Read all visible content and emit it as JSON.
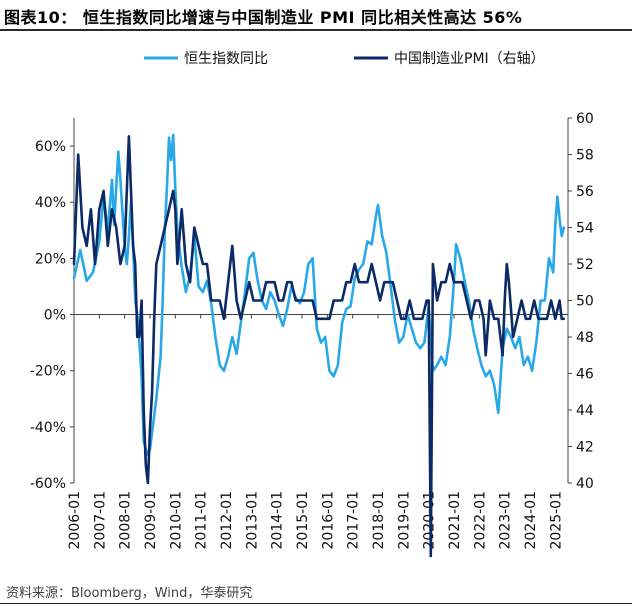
{
  "title": "图表10：  恒生指数同比增速与中国制造业 PMI 同比相关性高达 56%",
  "source": "资料来源：Bloomberg，Wind，华泰研究",
  "chart_data": {
    "type": "line",
    "title": "图表10：  恒生指数同比增速与中国制造业 PMI 同比相关性高达 56%",
    "legend_position": "top",
    "grid": false,
    "x_ticks": [
      "2006-01",
      "2007-01",
      "2008-01",
      "2009-01",
      "2010-01",
      "2011-01",
      "2012-01",
      "2013-01",
      "2014-01",
      "2015-01",
      "2016-01",
      "2017-01",
      "2018-01",
      "2019-01",
      "2020-01",
      "2021-01",
      "2022-01",
      "2023-01",
      "2024-01",
      "2025-01"
    ],
    "y_left": {
      "ticks": [
        "-60%",
        "-40%",
        "-20%",
        "0%",
        "20%",
        "40%",
        "60%"
      ],
      "min": -60,
      "max": 70,
      "unit": "%"
    },
    "y_right": {
      "ticks": [
        "40",
        "42",
        "44",
        "46",
        "48",
        "50",
        "52",
        "54",
        "56",
        "58",
        "60"
      ],
      "min": 40,
      "max": 60
    },
    "series": [
      {
        "name": "恒生指数同比",
        "axis": "left",
        "color": "#29a8e8",
        "points": [
          [
            "2006-01",
            13
          ],
          [
            "2006-04",
            23
          ],
          [
            "2006-07",
            12
          ],
          [
            "2006-10",
            15
          ],
          [
            "2007-01",
            26
          ],
          [
            "2007-03",
            42
          ],
          [
            "2007-05",
            30
          ],
          [
            "2007-07",
            48
          ],
          [
            "2007-08",
            32
          ],
          [
            "2007-10",
            58
          ],
          [
            "2007-11",
            48
          ],
          [
            "2008-01",
            24
          ],
          [
            "2008-02",
            18
          ],
          [
            "2008-03",
            28
          ],
          [
            "2008-04",
            40
          ],
          [
            "2008-05",
            24
          ],
          [
            "2008-06",
            5
          ],
          [
            "2008-07",
            0
          ],
          [
            "2008-08",
            -10
          ],
          [
            "2008-09",
            -22
          ],
          [
            "2008-10",
            -45
          ],
          [
            "2008-11",
            -48
          ],
          [
            "2008-12",
            -50
          ],
          [
            "2009-01",
            -48
          ],
          [
            "2009-02",
            -42
          ],
          [
            "2009-04",
            -30
          ],
          [
            "2009-06",
            -15
          ],
          [
            "2009-07",
            5
          ],
          [
            "2009-08",
            30
          ],
          [
            "2009-09",
            45
          ],
          [
            "2009-10",
            63
          ],
          [
            "2009-11",
            55
          ],
          [
            "2009-12",
            64
          ],
          [
            "2010-01",
            45
          ],
          [
            "2010-02",
            30
          ],
          [
            "2010-04",
            17
          ],
          [
            "2010-06",
            8
          ],
          [
            "2010-08",
            14
          ],
          [
            "2010-10",
            28
          ],
          [
            "2010-12",
            10
          ],
          [
            "2011-02",
            8
          ],
          [
            "2011-04",
            12
          ],
          [
            "2011-06",
            4
          ],
          [
            "2011-08",
            -8
          ],
          [
            "2011-10",
            -18
          ],
          [
            "2011-12",
            -20
          ],
          [
            "2012-02",
            -15
          ],
          [
            "2012-04",
            -8
          ],
          [
            "2012-06",
            -14
          ],
          [
            "2012-08",
            -3
          ],
          [
            "2012-10",
            8
          ],
          [
            "2012-12",
            20
          ],
          [
            "2013-02",
            22
          ],
          [
            "2013-04",
            12
          ],
          [
            "2013-06",
            5
          ],
          [
            "2013-08",
            2
          ],
          [
            "2013-10",
            8
          ],
          [
            "2013-12",
            5
          ],
          [
            "2014-02",
            0
          ],
          [
            "2014-04",
            -4
          ],
          [
            "2014-06",
            2
          ],
          [
            "2014-08",
            10
          ],
          [
            "2014-10",
            6
          ],
          [
            "2014-12",
            4
          ],
          [
            "2015-02",
            8
          ],
          [
            "2015-04",
            18
          ],
          [
            "2015-06",
            20
          ],
          [
            "2015-08",
            -5
          ],
          [
            "2015-10",
            -10
          ],
          [
            "2015-12",
            -8
          ],
          [
            "2016-02",
            -20
          ],
          [
            "2016-04",
            -22
          ],
          [
            "2016-06",
            -18
          ],
          [
            "2016-08",
            -3
          ],
          [
            "2016-10",
            2
          ],
          [
            "2016-12",
            3
          ],
          [
            "2017-02",
            13
          ],
          [
            "2017-04",
            16
          ],
          [
            "2017-06",
            18
          ],
          [
            "2017-08",
            26
          ],
          [
            "2017-10",
            25
          ],
          [
            "2017-12",
            35
          ],
          [
            "2018-01",
            39
          ],
          [
            "2018-03",
            28
          ],
          [
            "2018-05",
            22
          ],
          [
            "2018-07",
            10
          ],
          [
            "2018-09",
            -2
          ],
          [
            "2018-11",
            -10
          ],
          [
            "2019-01",
            -8
          ],
          [
            "2019-03",
            0
          ],
          [
            "2019-05",
            -5
          ],
          [
            "2019-07",
            -10
          ],
          [
            "2019-09",
            -12
          ],
          [
            "2019-11",
            -10
          ],
          [
            "2020-01",
            3
          ],
          [
            "2020-03",
            -20
          ],
          [
            "2020-05",
            -18
          ],
          [
            "2020-07",
            -15
          ],
          [
            "2020-09",
            -18
          ],
          [
            "2020-11",
            -8
          ],
          [
            "2021-01",
            12
          ],
          [
            "2021-02",
            25
          ],
          [
            "2021-04",
            20
          ],
          [
            "2021-06",
            12
          ],
          [
            "2021-08",
            5
          ],
          [
            "2021-10",
            -5
          ],
          [
            "2021-12",
            -12
          ],
          [
            "2022-02",
            -18
          ],
          [
            "2022-04",
            -22
          ],
          [
            "2022-06",
            -20
          ],
          [
            "2022-08",
            -25
          ],
          [
            "2022-10",
            -35
          ],
          [
            "2022-12",
            -12
          ],
          [
            "2023-02",
            -5
          ],
          [
            "2023-04",
            -8
          ],
          [
            "2023-06",
            -12
          ],
          [
            "2023-08",
            -8
          ],
          [
            "2023-10",
            -18
          ],
          [
            "2023-12",
            -15
          ],
          [
            "2024-02",
            -20
          ],
          [
            "2024-04",
            -10
          ],
          [
            "2024-06",
            5
          ],
          [
            "2024-08",
            5
          ],
          [
            "2024-10",
            20
          ],
          [
            "2024-12",
            15
          ],
          [
            "2025-01",
            32
          ],
          [
            "2025-02",
            42
          ],
          [
            "2025-03",
            34
          ],
          [
            "2025-04",
            28
          ],
          [
            "2025-05",
            31
          ]
        ]
      },
      {
        "name": "中国制造业PMI（右轴）",
        "axis": "right",
        "color": "#0b2a66",
        "points": [
          [
            "2006-01",
            52
          ],
          [
            "2006-03",
            58
          ],
          [
            "2006-05",
            54
          ],
          [
            "2006-07",
            53
          ],
          [
            "2006-09",
            55
          ],
          [
            "2006-11",
            52
          ],
          [
            "2007-01",
            55
          ],
          [
            "2007-03",
            56
          ],
          [
            "2007-05",
            53
          ],
          [
            "2007-07",
            55
          ],
          [
            "2007-09",
            54
          ],
          [
            "2007-11",
            52
          ],
          [
            "2008-01",
            53
          ],
          [
            "2008-03",
            59
          ],
          [
            "2008-04",
            56
          ],
          [
            "2008-05",
            53
          ],
          [
            "2008-06",
            52
          ],
          [
            "2008-07",
            48
          ],
          [
            "2008-08",
            48
          ],
          [
            "2008-09",
            50
          ],
          [
            "2008-10",
            44
          ],
          [
            "2008-11",
            41
          ],
          [
            "2008-12",
            40
          ],
          [
            "2009-01",
            43
          ],
          [
            "2009-02",
            45
          ],
          [
            "2009-03",
            49
          ],
          [
            "2009-04",
            52
          ],
          [
            "2009-06",
            53
          ],
          [
            "2009-08",
            54
          ],
          [
            "2009-10",
            55
          ],
          [
            "2009-12",
            56
          ],
          [
            "2010-01",
            55
          ],
          [
            "2010-02",
            52
          ],
          [
            "2010-04",
            55
          ],
          [
            "2010-06",
            52
          ],
          [
            "2010-08",
            51
          ],
          [
            "2010-10",
            54
          ],
          [
            "2010-12",
            53
          ],
          [
            "2011-02",
            52
          ],
          [
            "2011-04",
            52
          ],
          [
            "2011-06",
            50
          ],
          [
            "2011-08",
            50
          ],
          [
            "2011-10",
            50
          ],
          [
            "2011-12",
            49
          ],
          [
            "2012-02",
            51
          ],
          [
            "2012-04",
            53
          ],
          [
            "2012-06",
            50
          ],
          [
            "2012-08",
            49
          ],
          [
            "2012-10",
            50
          ],
          [
            "2012-12",
            51
          ],
          [
            "2013-02",
            50
          ],
          [
            "2013-04",
            50
          ],
          [
            "2013-06",
            50
          ],
          [
            "2013-08",
            51
          ],
          [
            "2013-10",
            51
          ],
          [
            "2013-12",
            51
          ],
          [
            "2014-02",
            50
          ],
          [
            "2014-04",
            50
          ],
          [
            "2014-06",
            51
          ],
          [
            "2014-08",
            51
          ],
          [
            "2014-10",
            50
          ],
          [
            "2014-12",
            50
          ],
          [
            "2015-02",
            50
          ],
          [
            "2015-04",
            50
          ],
          [
            "2015-06",
            50
          ],
          [
            "2015-08",
            49
          ],
          [
            "2015-10",
            49
          ],
          [
            "2015-12",
            49
          ],
          [
            "2016-02",
            49
          ],
          [
            "2016-04",
            50
          ],
          [
            "2016-06",
            50
          ],
          [
            "2016-08",
            50
          ],
          [
            "2016-10",
            51
          ],
          [
            "2016-12",
            51
          ],
          [
            "2017-02",
            52
          ],
          [
            "2017-04",
            51
          ],
          [
            "2017-06",
            51
          ],
          [
            "2017-08",
            51
          ],
          [
            "2017-10",
            52
          ],
          [
            "2017-12",
            51
          ],
          [
            "2018-02",
            50
          ],
          [
            "2018-04",
            51
          ],
          [
            "2018-06",
            51
          ],
          [
            "2018-08",
            51
          ],
          [
            "2018-10",
            50
          ],
          [
            "2018-12",
            49
          ],
          [
            "2019-02",
            49
          ],
          [
            "2019-04",
            50
          ],
          [
            "2019-06",
            49
          ],
          [
            "2019-08",
            49
          ],
          [
            "2019-10",
            49
          ],
          [
            "2019-12",
            50
          ],
          [
            "2020-01",
            50
          ],
          [
            "2020-02",
            36
          ],
          [
            "2020-03",
            52
          ],
          [
            "2020-05",
            50
          ],
          [
            "2020-07",
            51
          ],
          [
            "2020-09",
            51
          ],
          [
            "2020-11",
            52
          ],
          [
            "2021-01",
            51
          ],
          [
            "2021-03",
            51
          ],
          [
            "2021-05",
            51
          ],
          [
            "2021-07",
            50
          ],
          [
            "2021-09",
            49
          ],
          [
            "2021-11",
            50
          ],
          [
            "2022-01",
            50
          ],
          [
            "2022-03",
            49
          ],
          [
            "2022-04",
            47
          ],
          [
            "2022-06",
            50
          ],
          [
            "2022-08",
            49
          ],
          [
            "2022-10",
            49
          ],
          [
            "2022-12",
            47
          ],
          [
            "2023-01",
            50
          ],
          [
            "2023-02",
            52
          ],
          [
            "2023-03",
            51
          ],
          [
            "2023-05",
            48
          ],
          [
            "2023-07",
            49
          ],
          [
            "2023-09",
            50
          ],
          [
            "2023-11",
            49
          ],
          [
            "2024-01",
            49
          ],
          [
            "2024-03",
            50
          ],
          [
            "2024-05",
            49
          ],
          [
            "2024-07",
            49
          ],
          [
            "2024-09",
            49
          ],
          [
            "2024-11",
            50
          ],
          [
            "2025-01",
            49
          ],
          [
            "2025-03",
            50
          ],
          [
            "2025-04",
            49
          ],
          [
            "2025-05",
            49
          ]
        ]
      }
    ]
  }
}
